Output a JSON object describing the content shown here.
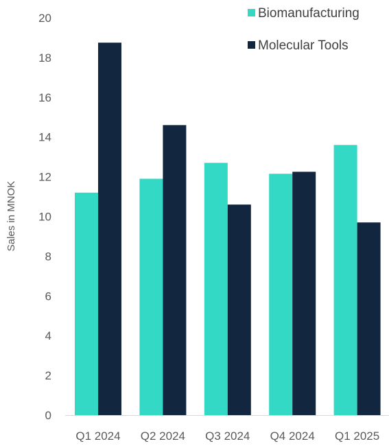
{
  "chart_data": {
    "type": "bar",
    "title": "",
    "xlabel": "",
    "ylabel": "Sales in MNOK",
    "categories": [
      "Q1 2024",
      "Q2 2024",
      "Q3 2024",
      "Q4 2024",
      "Q1 2025"
    ],
    "series": [
      {
        "name": "Biomanufacturing",
        "color": "#33D9C5",
        "values": [
          11.2,
          11.9,
          12.7,
          12.15,
          13.6
        ]
      },
      {
        "name": "Molecular Tools",
        "color": "#13263F",
        "values": [
          18.75,
          14.6,
          10.6,
          12.25,
          9.7
        ]
      }
    ],
    "ylim": [
      0,
      20
    ],
    "yticks": [
      0,
      2,
      4,
      6,
      8,
      10,
      12,
      14,
      16,
      18,
      20
    ],
    "grid": false,
    "legend_position": "top-right"
  }
}
